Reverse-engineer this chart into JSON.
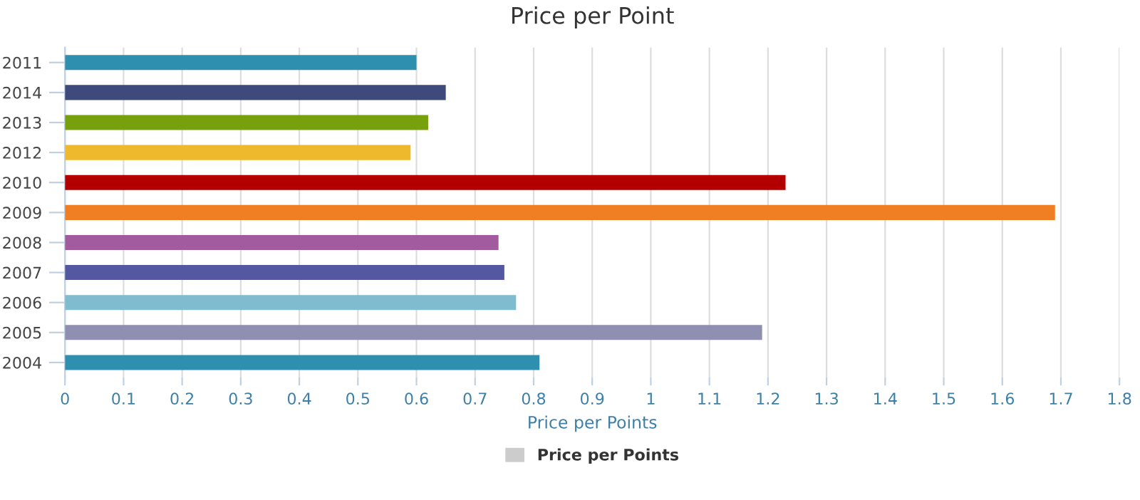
{
  "chart_data": {
    "type": "bar",
    "orientation": "horizontal",
    "title": "Price per Point",
    "xlabel": "Price per Points",
    "categories": [
      "2011",
      "2014",
      "2013",
      "2012",
      "2010",
      "2009",
      "2008",
      "2007",
      "2006",
      "2005",
      "2004"
    ],
    "series": [
      {
        "name": "Price per Points",
        "color": "#cccccc",
        "colors": [
          "#2f8fae",
          "#3f4a7c",
          "#76a00c",
          "#efb92d",
          "#b20000",
          "#f07f24",
          "#a25b9e",
          "#5358a0",
          "#7fbcd0",
          "#8e8fb1",
          "#2f8fae"
        ],
        "values": [
          0.6,
          0.65,
          0.62,
          0.59,
          1.23,
          1.69,
          0.74,
          0.75,
          0.77,
          1.19,
          0.81
        ]
      }
    ],
    "xlim": [
      0,
      1.8
    ],
    "xticks": [
      0,
      0.1,
      0.2,
      0.3,
      0.4,
      0.5,
      0.6,
      0.7,
      0.8,
      0.9,
      1,
      1.1,
      1.2,
      1.3,
      1.4,
      1.5,
      1.6,
      1.7,
      1.8
    ],
    "grid": "x",
    "legend": "bottom"
  }
}
